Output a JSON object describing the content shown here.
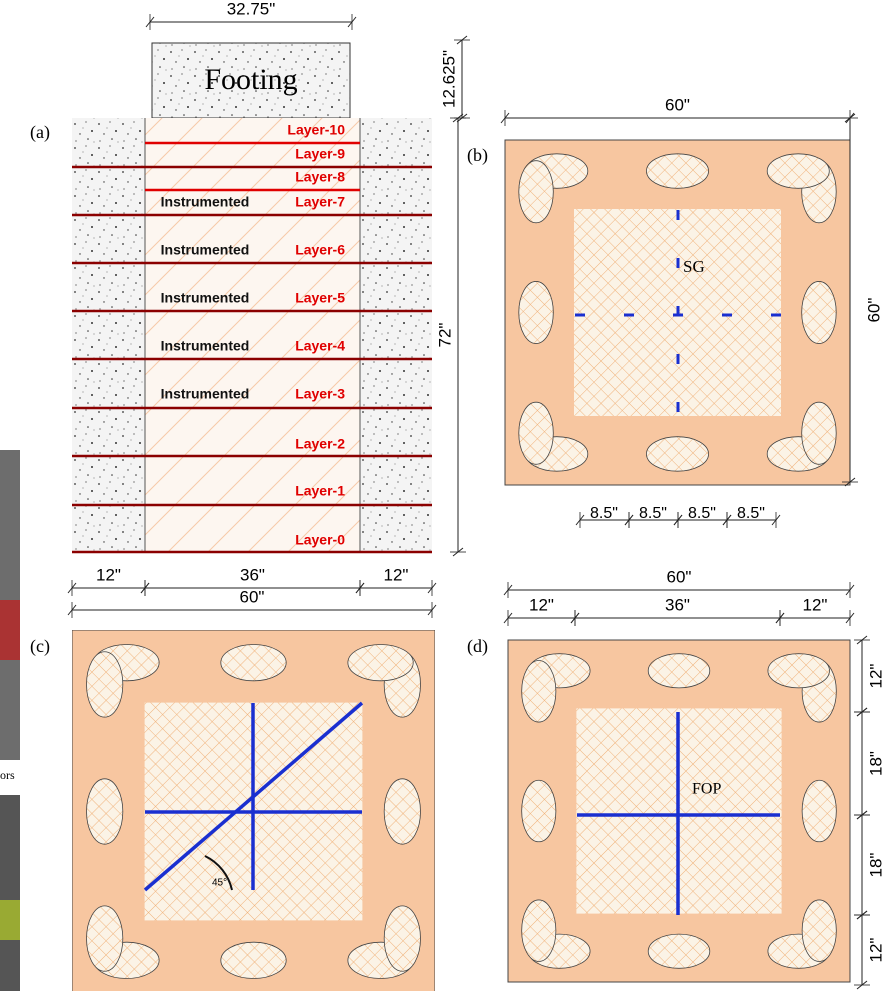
{
  "panel_a": {
    "label": "(a)",
    "footing": "Footing",
    "footing_width": "32.75\"",
    "footing_height": "12.625\"",
    "total_height": "72\"",
    "layers": [
      {
        "name": "Layer-10"
      },
      {
        "name": "Layer-9"
      },
      {
        "name": "Layer-8"
      },
      {
        "name": "Layer-7",
        "note": "Instrumented"
      },
      {
        "name": "Layer-6",
        "note": "Instrumented"
      },
      {
        "name": "Layer-5",
        "note": "Instrumented"
      },
      {
        "name": "Layer-4",
        "note": "Instrumented"
      },
      {
        "name": "Layer-3",
        "note": "Instrumented"
      },
      {
        "name": "Layer-2"
      },
      {
        "name": "Layer-1"
      },
      {
        "name": "Layer-0"
      }
    ],
    "bottom_dims": [
      "12\"",
      "36\"",
      "12\""
    ],
    "total_width": "60\""
  },
  "panel_b": {
    "label": "(b)",
    "width": "60\"",
    "height": "60\"",
    "sensor": "SG",
    "spacing": [
      "8.5\"",
      "8.5\"",
      "8.5\"",
      "8.5\""
    ]
  },
  "panel_c": {
    "label": "(c)",
    "angle": "45°"
  },
  "panel_d": {
    "label": "(d)",
    "width": "60\"",
    "top_dims": [
      "12\"",
      "36\"",
      "12\""
    ],
    "side_dims": [
      "12\"",
      "18\"",
      "18\"",
      "12\""
    ],
    "sensor": "FOP"
  },
  "photo_caption": "ors"
}
